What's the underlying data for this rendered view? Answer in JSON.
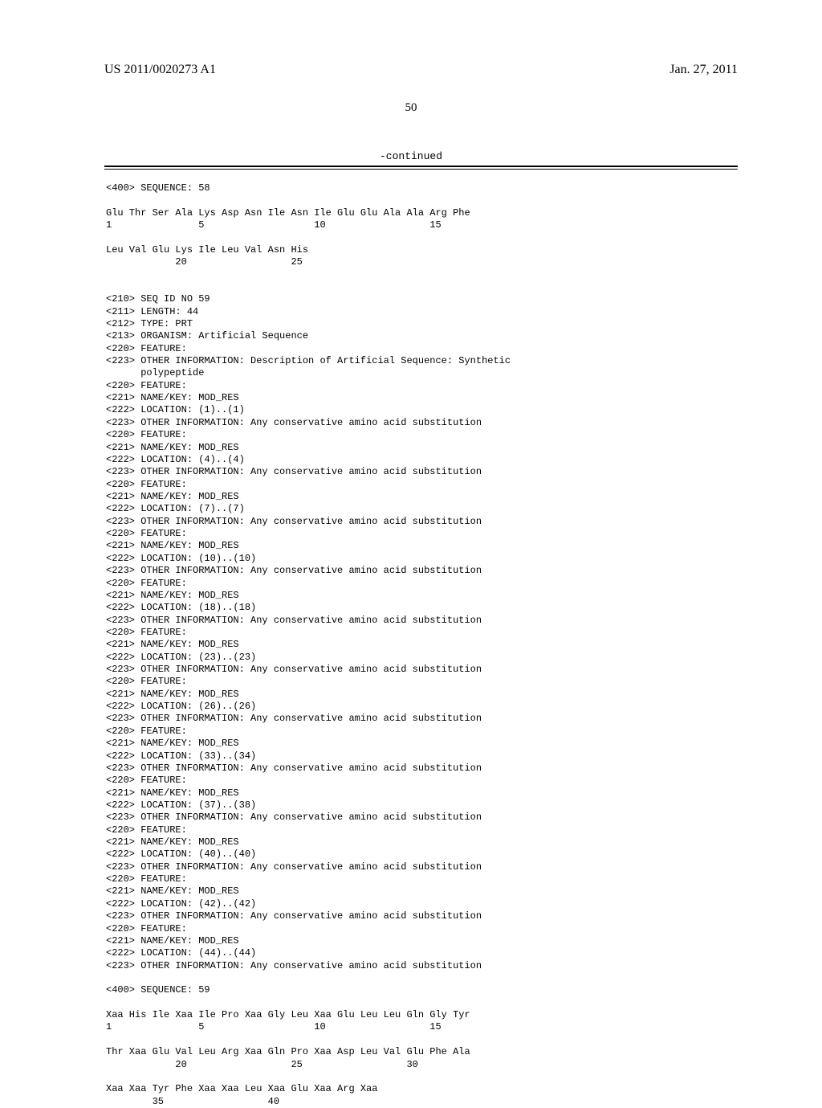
{
  "header": {
    "left": "US 2011/0020273 A1",
    "right": "Jan. 27, 2011"
  },
  "page_number": "50",
  "continued_label": "-continued",
  "seq58": {
    "header": "<400> SEQUENCE: 58",
    "line1": "Glu Thr Ser Ala Lys Asp Asn Ile Asn Ile Glu Glu Ala Ala Arg Phe",
    "nums1": "1               5                   10                  15",
    "line2": "Leu Val Glu Lys Ile Leu Val Asn His",
    "nums2": "            20                  25"
  },
  "features": {
    "seqid": "<210> SEQ ID NO 59",
    "length": "<211> LENGTH: 44",
    "type": "<212> TYPE: PRT",
    "organism": "<213> ORGANISM: Artificial Sequence",
    "feat": "<220> FEATURE:",
    "other_a": "<223> OTHER INFORMATION: Description of Artificial Sequence: Synthetic",
    "other_b": "      polypeptide",
    "name": "<221> NAME/KEY: MOD_RES",
    "cons": "<223> OTHER INFORMATION: Any conservative amino acid substitution",
    "loc1": "<222> LOCATION: (1)..(1)",
    "loc4": "<222> LOCATION: (4)..(4)",
    "loc7": "<222> LOCATION: (7)..(7)",
    "loc10": "<222> LOCATION: (10)..(10)",
    "loc18": "<222> LOCATION: (18)..(18)",
    "loc23": "<222> LOCATION: (23)..(23)",
    "loc26": "<222> LOCATION: (26)..(26)",
    "loc33": "<222> LOCATION: (33)..(34)",
    "loc37": "<222> LOCATION: (37)..(38)",
    "loc40": "<222> LOCATION: (40)..(40)",
    "loc42": "<222> LOCATION: (42)..(42)",
    "loc44": "<222> LOCATION: (44)..(44)"
  },
  "seq59": {
    "header": "<400> SEQUENCE: 59",
    "line1": "Xaa His Ile Xaa Ile Pro Xaa Gly Leu Xaa Glu Leu Leu Gln Gly Tyr",
    "nums1": "1               5                   10                  15",
    "line2": "Thr Xaa Glu Val Leu Arg Xaa Gln Pro Xaa Asp Leu Val Glu Phe Ala",
    "nums2": "            20                  25                  30",
    "line3": "Xaa Xaa Tyr Phe Xaa Xaa Leu Xaa Glu Xaa Arg Xaa",
    "nums3": "        35                  40"
  }
}
